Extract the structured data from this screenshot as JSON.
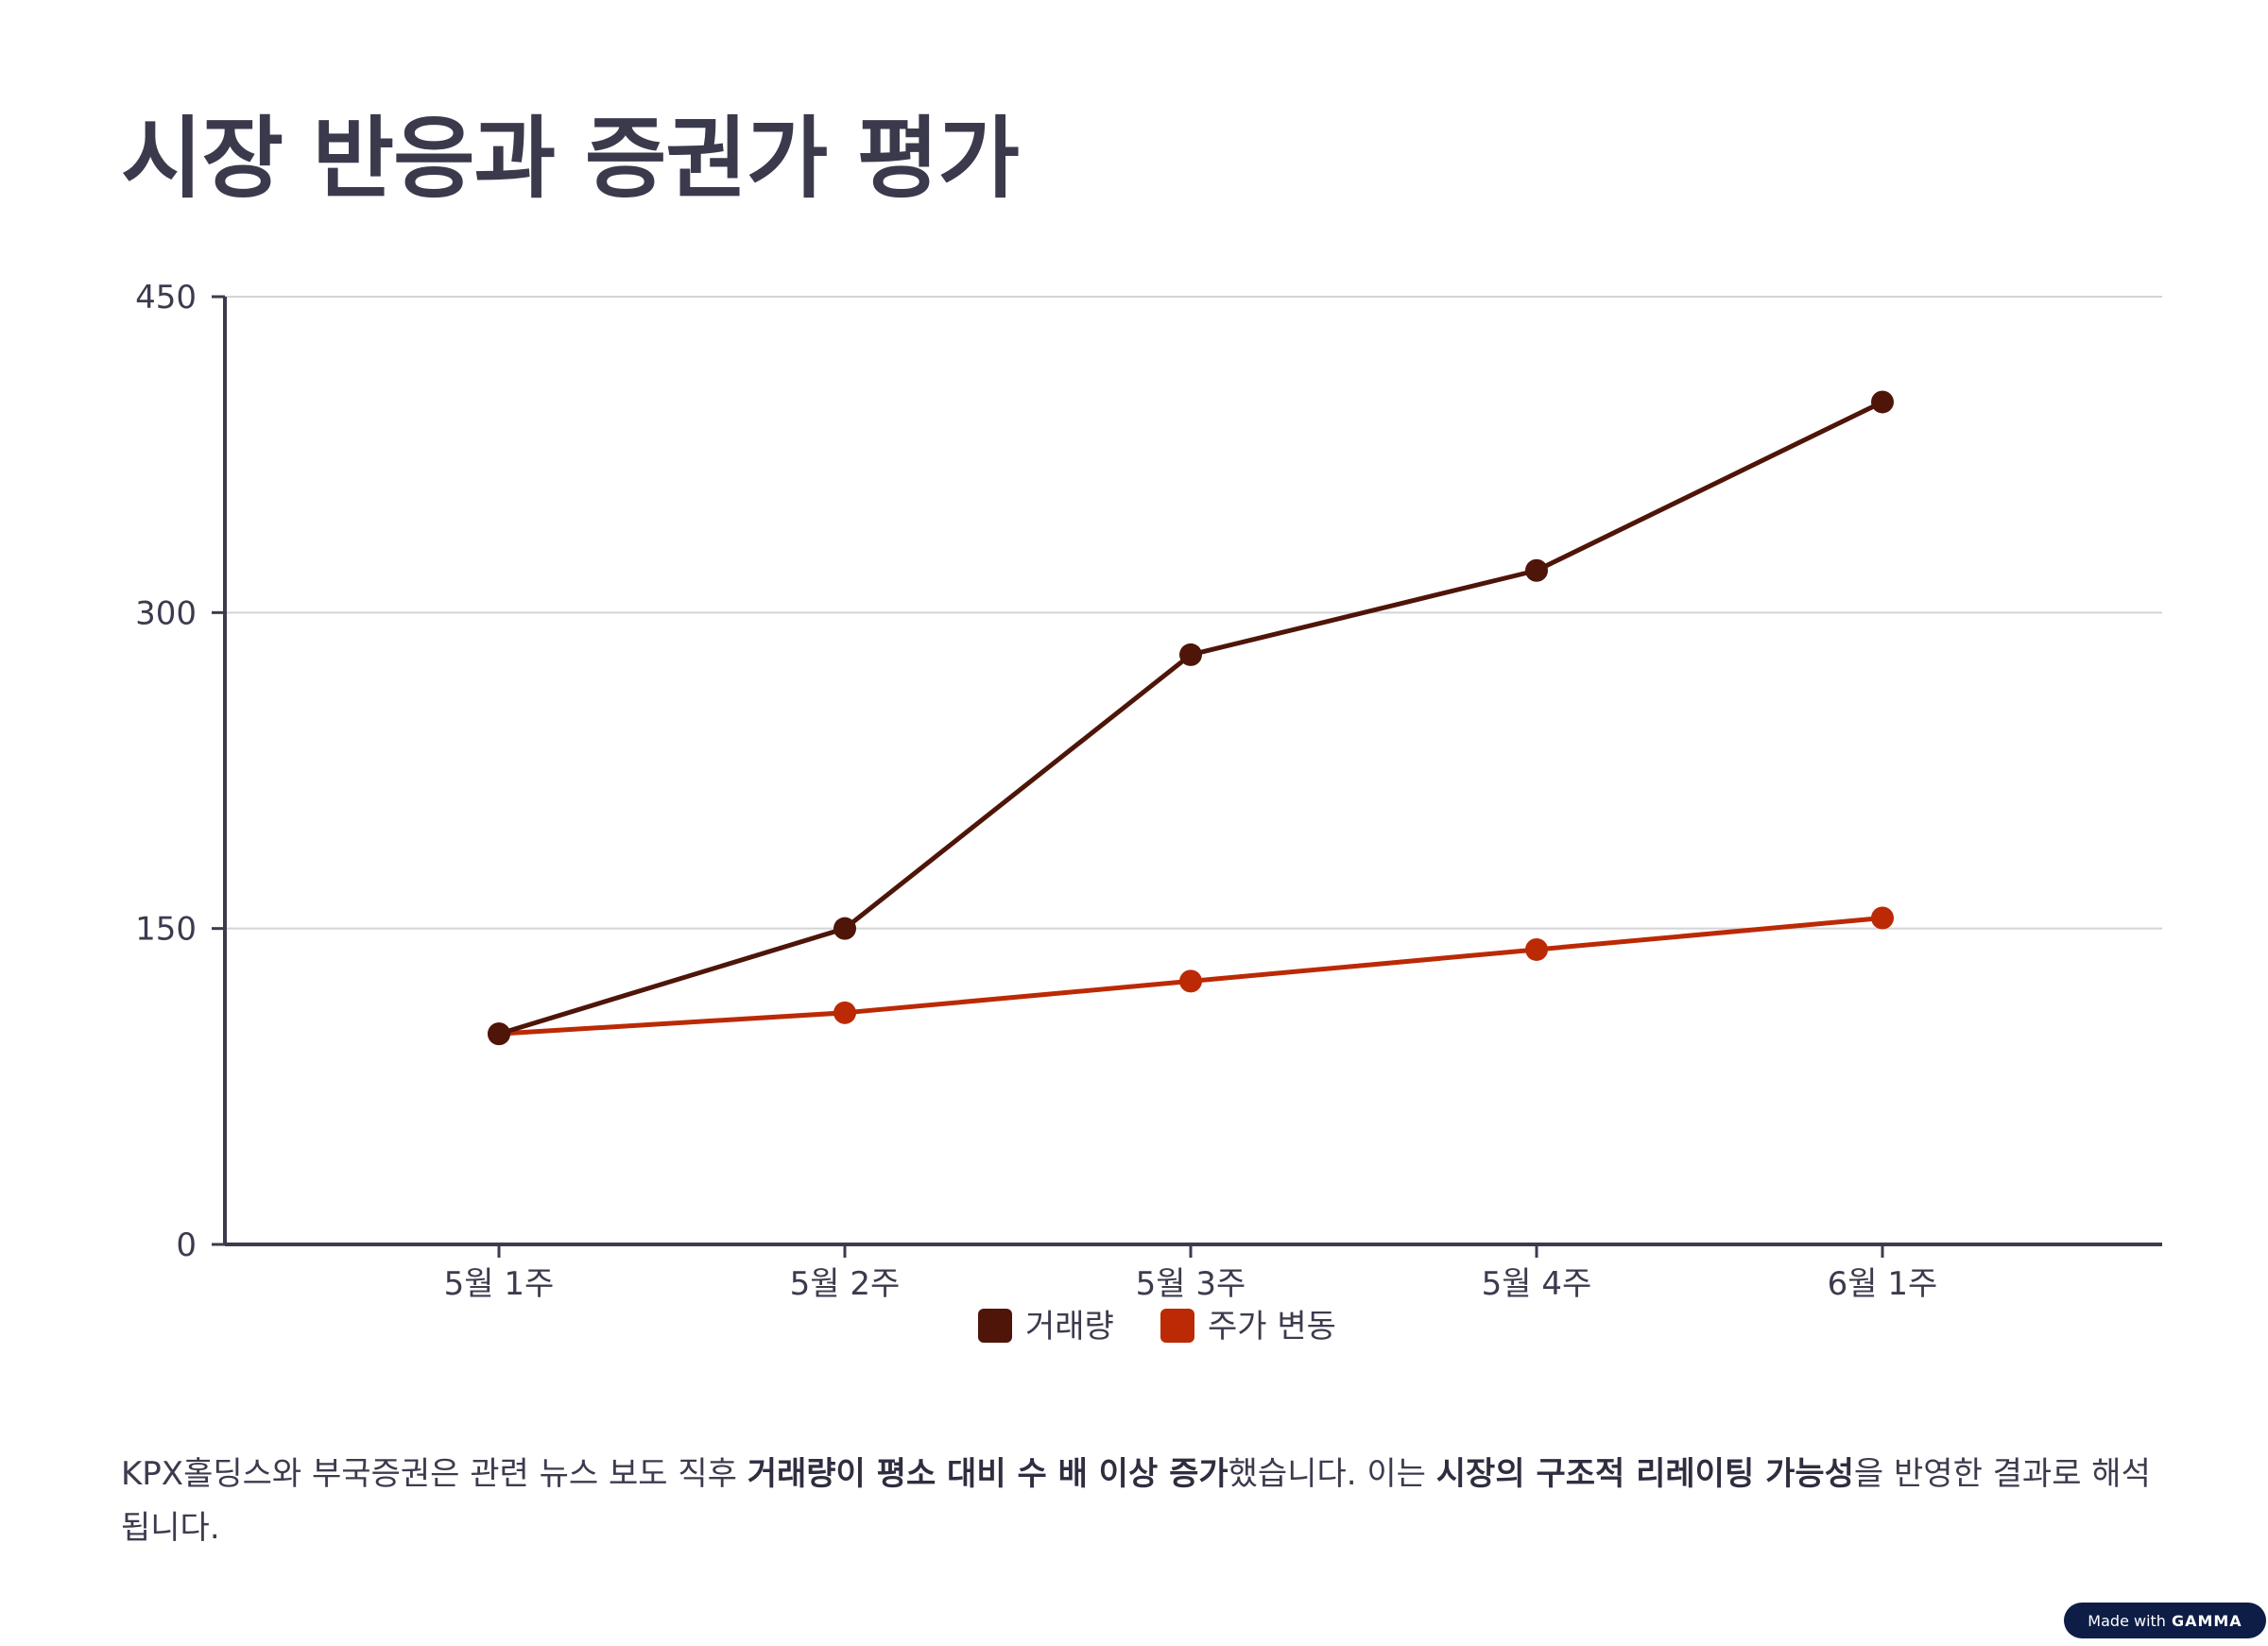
{
  "page": {
    "title": "시장 반응과 증권가 평가",
    "paragraph": {
      "t1": "KPX홀딩스와 부국증권은 관련 뉴스 보도 직후 ",
      "b1": "거래량이 평소 대비 수 배 이상 증가",
      "t2": "했습니다. 이는 ",
      "b2": "시장의 구조적 리레이팅 가능성",
      "t3": "을 반영한 결과로 해석됩니다."
    },
    "badge": {
      "prefix": "Made with",
      "brand": "GAMMA"
    }
  },
  "colors": {
    "title": "#3a3a4c",
    "axis": "#3c3b4e",
    "grid": "#d4d4d8",
    "volume": "#4e1508",
    "price": "#bb2a05",
    "badge_bg": "#0d1d45"
  },
  "chart_data": {
    "type": "line",
    "title": "",
    "xlabel": "",
    "ylabel": "",
    "categories": [
      "5월 1주",
      "5월 2주",
      "5월 3주",
      "5월 4주",
      "6월 1주"
    ],
    "ylim": [
      0,
      450
    ],
    "yticks": [
      0,
      150,
      300,
      450
    ],
    "grid": true,
    "legend_position": "bottom-center",
    "series": [
      {
        "name": "거래량",
        "color": "#4e1508",
        "values": [
          100,
          150,
          280,
          320,
          400
        ]
      },
      {
        "name": "주가 변동",
        "color": "#bb2a05",
        "values": [
          100,
          110,
          125,
          140,
          155
        ]
      }
    ]
  }
}
